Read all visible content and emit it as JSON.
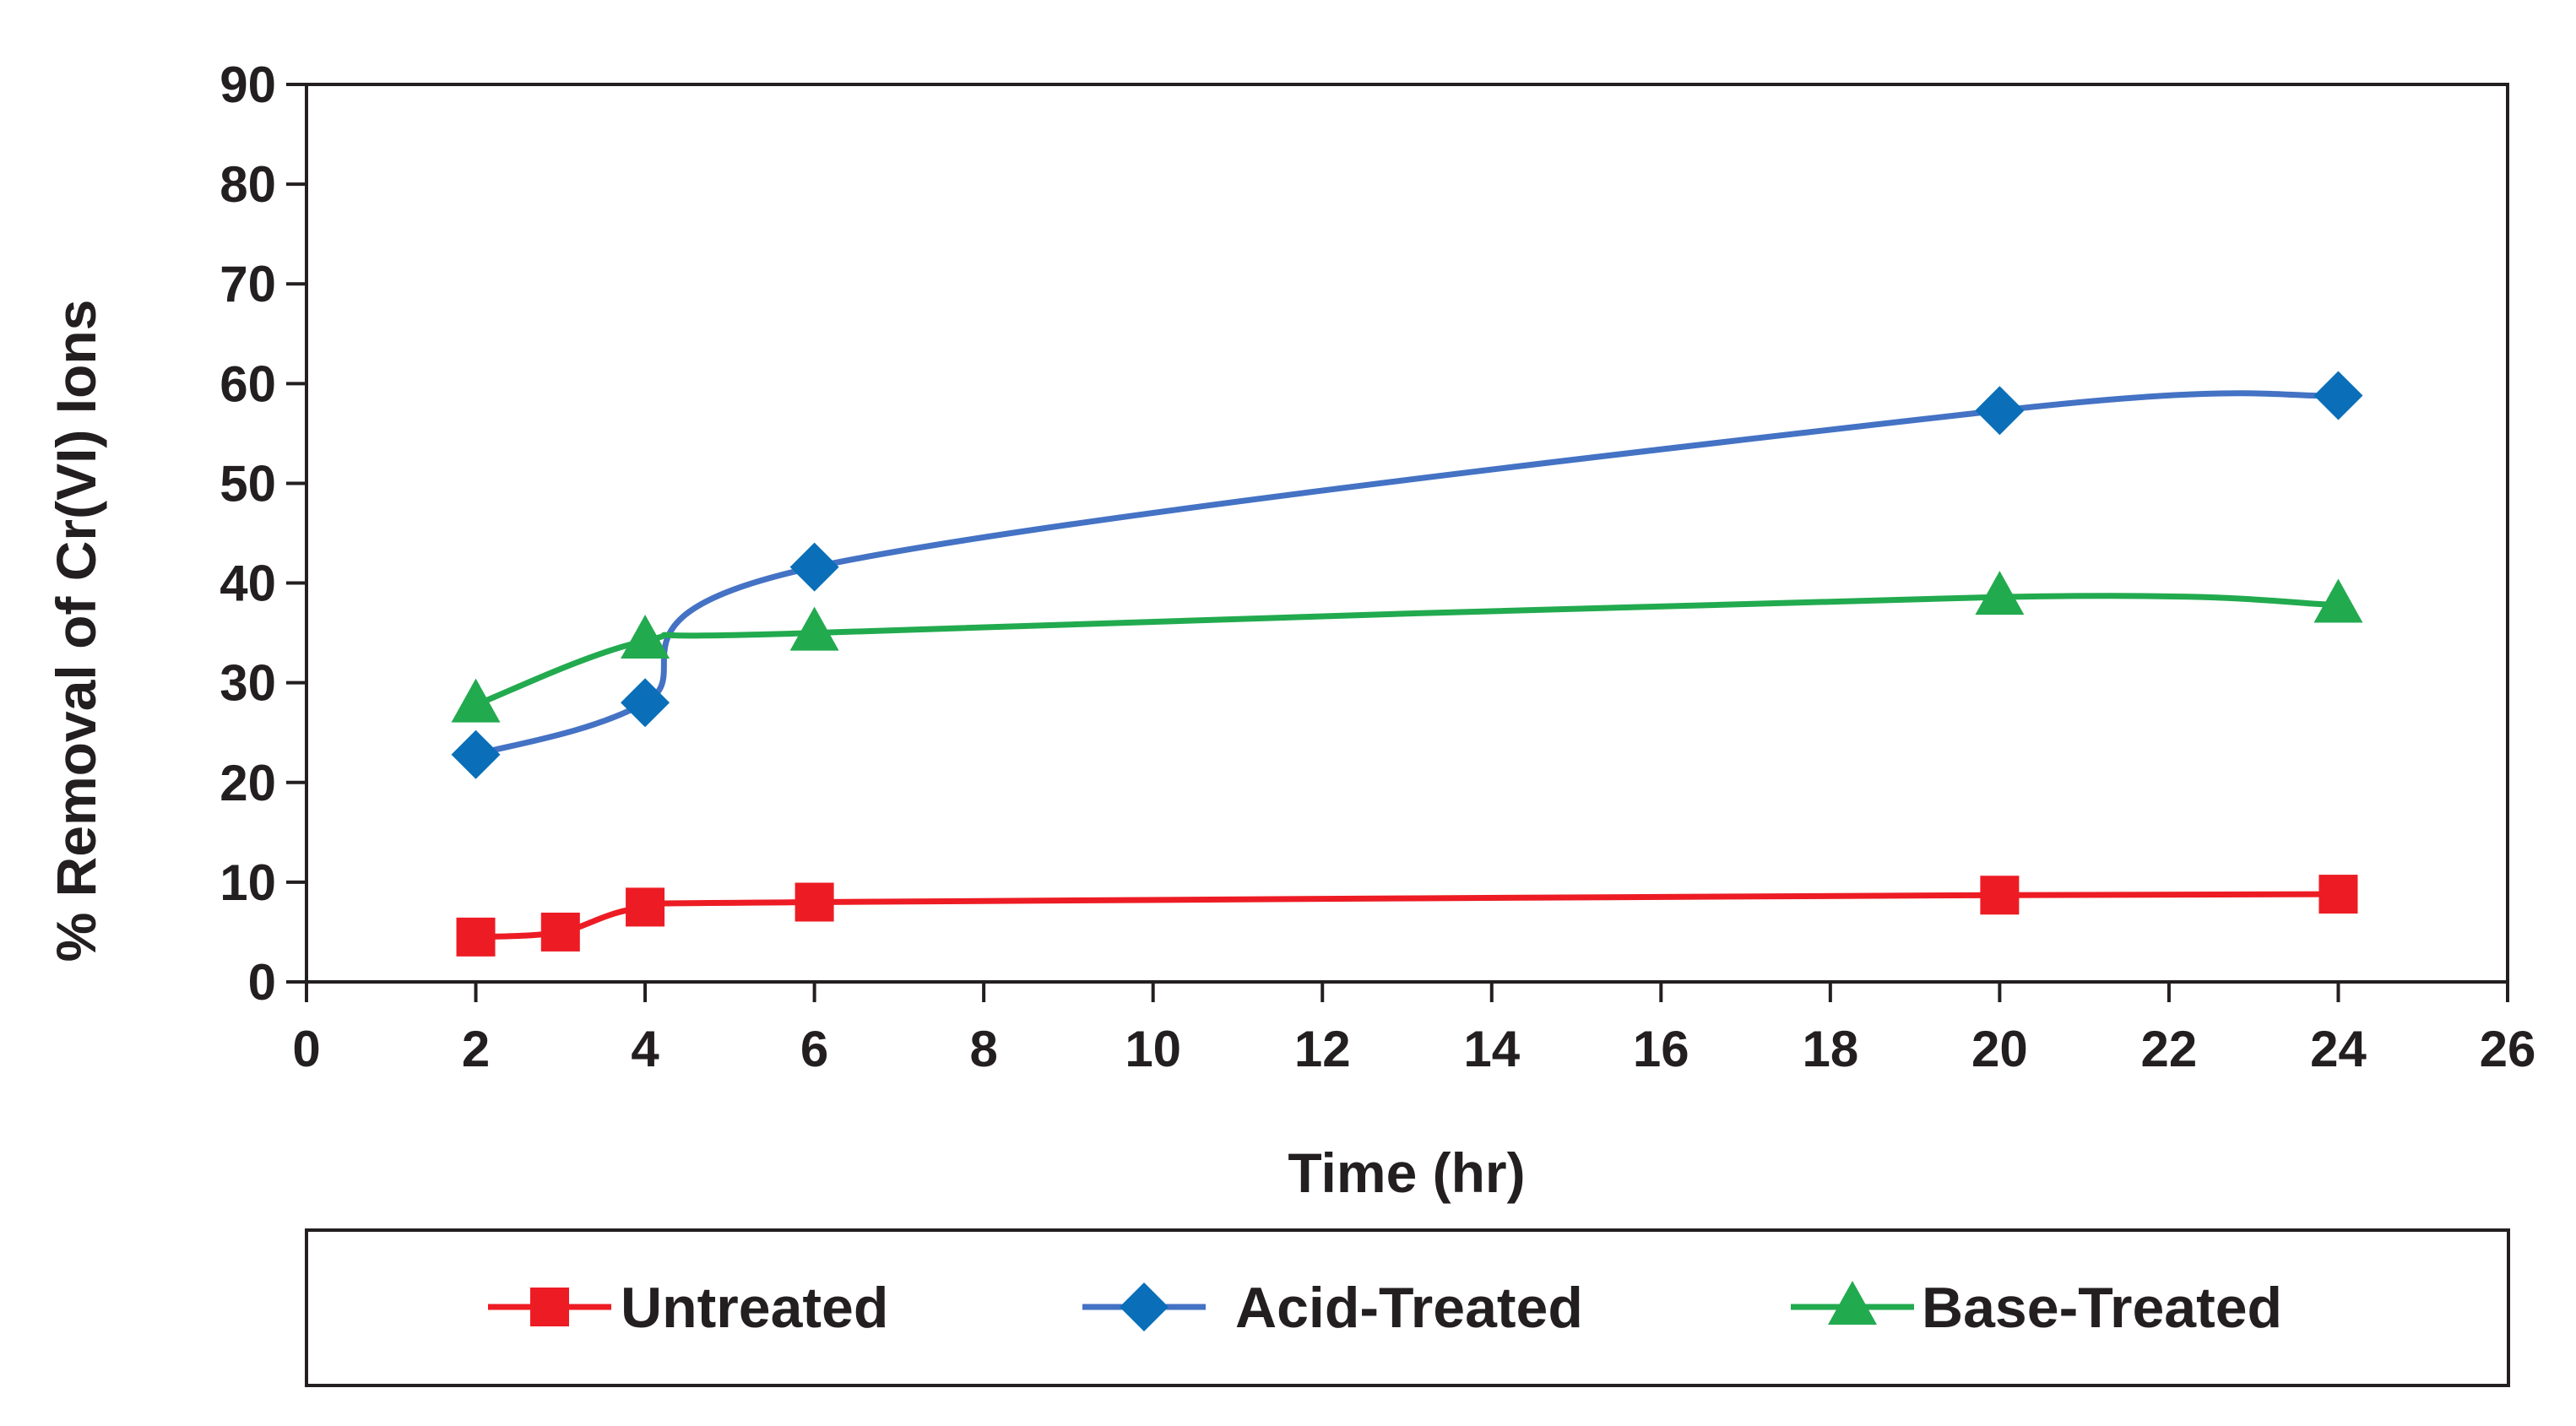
{
  "chart_data": {
    "type": "line",
    "title": "",
    "xlabel": "Time (hr)",
    "ylabel": "% Removal of Cr(VI) Ions",
    "xlim": [
      0,
      26
    ],
    "ylim": [
      0,
      90
    ],
    "x_ticks": [
      0,
      2,
      4,
      6,
      8,
      10,
      12,
      14,
      16,
      18,
      20,
      22,
      24,
      26
    ],
    "y_ticks": [
      0,
      10,
      20,
      30,
      40,
      50,
      60,
      70,
      80,
      90
    ],
    "grid": false,
    "smooth": true,
    "legend_position": "bottom",
    "series": [
      {
        "name": "Untreated",
        "color": "#ed1c24",
        "marker": "square",
        "x": [
          2,
          3,
          4,
          6,
          20,
          24
        ],
        "values": [
          4.5,
          5.0,
          7.5,
          8.0,
          8.7,
          8.8
        ]
      },
      {
        "name": "Acid-Treated",
        "color": "#4472c4",
        "marker_color": "#0a6fb8",
        "marker": "diamond",
        "x": [
          2,
          4,
          6,
          20,
          24
        ],
        "values": [
          22.8,
          28.0,
          41.6,
          57.3,
          58.8
        ]
      },
      {
        "name": "Base-Treated",
        "color": "#22aa4f",
        "marker": "triangle",
        "x": [
          2,
          4,
          6,
          20,
          24
        ],
        "values": [
          27.8,
          34.2,
          35.0,
          38.6,
          37.8
        ]
      }
    ]
  }
}
